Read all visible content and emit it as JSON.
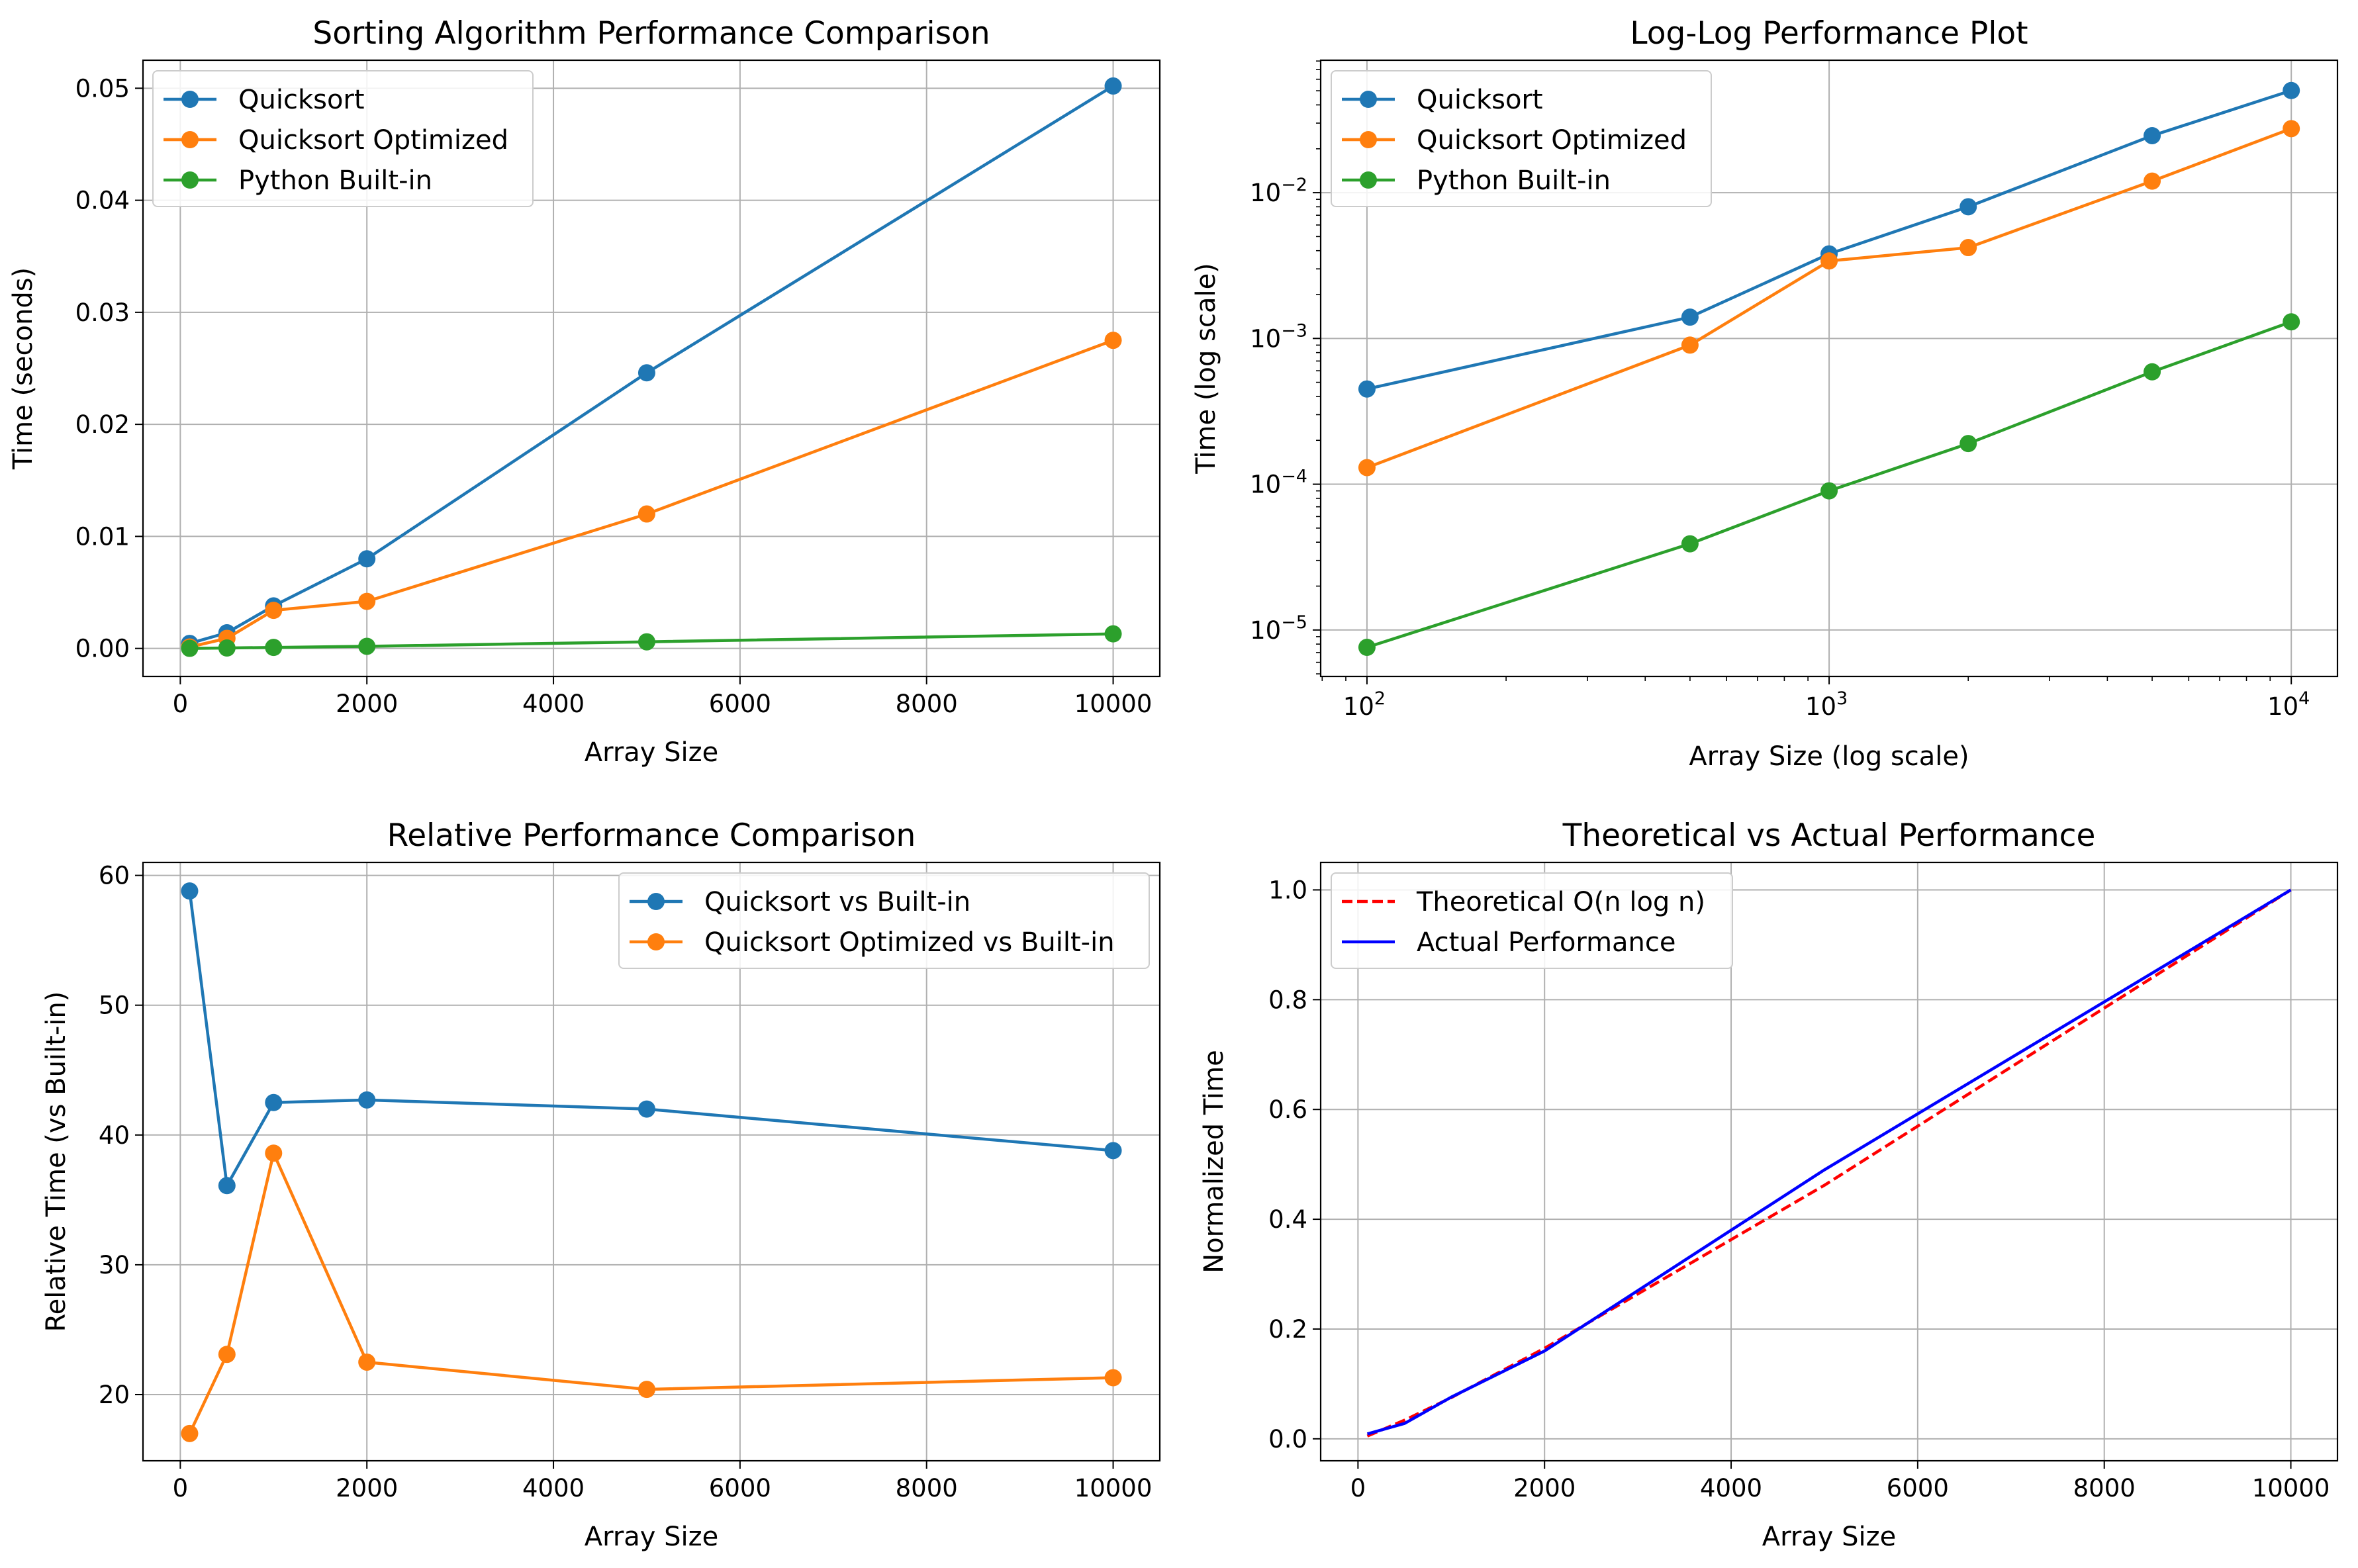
{
  "chart_data": [
    {
      "type": "line",
      "title": "Sorting Algorithm Performance Comparison",
      "xlabel": "Array Size",
      "ylabel": "Time (seconds)",
      "x": [
        100,
        500,
        1000,
        2000,
        5000,
        10000
      ],
      "xlim": [
        -400,
        10500
      ],
      "ylim": [
        -0.0025,
        0.0525
      ],
      "xticks": [
        0,
        2000,
        4000,
        6000,
        8000,
        10000
      ],
      "xtick_labels": [
        "0",
        "2000",
        "4000",
        "6000",
        "8000",
        "10000"
      ],
      "yticks": [
        0,
        0.01,
        0.02,
        0.03,
        0.04,
        0.05
      ],
      "ytick_labels": [
        "0.00",
        "0.01",
        "0.02",
        "0.03",
        "0.04",
        "0.05"
      ],
      "grid": true,
      "legend": "upper-left",
      "series": [
        {
          "name": "Quicksort",
          "color": "#1f77b4",
          "style": "solid",
          "marker": "circle",
          "values": [
            0.00045,
            0.0014,
            0.0038,
            0.008,
            0.0246,
            0.0502
          ]
        },
        {
          "name": "Quicksort Optimized",
          "color": "#ff7f0e",
          "style": "solid",
          "marker": "circle",
          "values": [
            0.00013,
            0.0009,
            0.0034,
            0.0042,
            0.012,
            0.0275
          ]
        },
        {
          "name": "Python Built-in",
          "color": "#2ca02c",
          "style": "solid",
          "marker": "circle",
          "values": [
            7.6e-06,
            3.9e-05,
            9e-05,
            0.00019,
            0.00059,
            0.0013
          ]
        }
      ]
    },
    {
      "type": "line",
      "title": "Log-Log Performance Plot",
      "xlabel": "Array Size (log scale)",
      "ylabel": "Time (log scale)",
      "xscale": "log",
      "yscale": "log",
      "x": [
        100,
        500,
        1000,
        2000,
        5000,
        10000
      ],
      "xlim": [
        79.4,
        12589
      ],
      "ylim": [
        4.8e-06,
        0.081
      ],
      "xticks": [
        {
          "base": "10",
          "exp": "2",
          "value": 100
        },
        {
          "base": "10",
          "exp": "3",
          "value": 1000
        },
        {
          "base": "10",
          "exp": "4",
          "value": 10000
        }
      ],
      "yticks": [
        {
          "base": "10",
          "exp": "−5",
          "value": 1e-05
        },
        {
          "base": "10",
          "exp": "−4",
          "value": 0.0001
        },
        {
          "base": "10",
          "exp": "−3",
          "value": 0.001
        },
        {
          "base": "10",
          "exp": "−2",
          "value": 0.01
        }
      ],
      "grid": true,
      "legend": "upper-left",
      "series": [
        {
          "name": "Quicksort",
          "color": "#1f77b4",
          "style": "solid",
          "marker": "circle",
          "values": [
            0.00045,
            0.0014,
            0.0038,
            0.008,
            0.0246,
            0.0502
          ]
        },
        {
          "name": "Quicksort Optimized",
          "color": "#ff7f0e",
          "style": "solid",
          "marker": "circle",
          "values": [
            0.00013,
            0.0009,
            0.0034,
            0.0042,
            0.012,
            0.0275
          ]
        },
        {
          "name": "Python Built-in",
          "color": "#2ca02c",
          "style": "solid",
          "marker": "circle",
          "values": [
            7.6e-06,
            3.9e-05,
            9e-05,
            0.00019,
            0.00059,
            0.0013
          ]
        }
      ]
    },
    {
      "type": "line",
      "title": "Relative Performance Comparison",
      "xlabel": "Array Size",
      "ylabel": "Relative Time (vs Built-in)",
      "x": [
        100,
        500,
        1000,
        2000,
        5000,
        10000
      ],
      "xlim": [
        -400,
        10500
      ],
      "ylim": [
        14.9,
        61.0
      ],
      "xticks": [
        0,
        2000,
        4000,
        6000,
        8000,
        10000
      ],
      "xtick_labels": [
        "0",
        "2000",
        "4000",
        "6000",
        "8000",
        "10000"
      ],
      "yticks": [
        20,
        30,
        40,
        50,
        60
      ],
      "ytick_labels": [
        "20",
        "30",
        "40",
        "50",
        "60"
      ],
      "grid": true,
      "legend": "upper-right",
      "series": [
        {
          "name": "Quicksort vs Built-in",
          "color": "#1f77b4",
          "style": "solid",
          "marker": "circle",
          "values": [
            58.8,
            36.1,
            42.5,
            42.7,
            42.0,
            38.8
          ]
        },
        {
          "name": "Quicksort Optimized vs Built-in",
          "color": "#ff7f0e",
          "style": "solid",
          "marker": "circle",
          "values": [
            17.0,
            23.1,
            38.6,
            22.5,
            20.4,
            21.3
          ]
        }
      ]
    },
    {
      "type": "line",
      "title": "Theoretical vs Actual Performance",
      "xlabel": "Array Size",
      "ylabel": "Normalized Time",
      "x": [
        100,
        500,
        1000,
        2000,
        5000,
        10000
      ],
      "xlim": [
        -400,
        10500
      ],
      "ylim": [
        -0.04,
        1.05
      ],
      "xticks": [
        0,
        2000,
        4000,
        6000,
        8000,
        10000
      ],
      "xtick_labels": [
        "0",
        "2000",
        "4000",
        "6000",
        "8000",
        "10000"
      ],
      "yticks": [
        0,
        0.2,
        0.4,
        0.6,
        0.8,
        1.0
      ],
      "ytick_labels": [
        "0.0",
        "0.2",
        "0.4",
        "0.6",
        "0.8",
        "1.0"
      ],
      "grid": true,
      "legend": "upper-left",
      "series": [
        {
          "name": "Theoretical O(n log n)",
          "color": "#ff0000",
          "style": "dashed",
          "marker": "none",
          "values": [
            0.005,
            0.034,
            0.075,
            0.165,
            0.462,
            1.0
          ]
        },
        {
          "name": "Actual Performance",
          "color": "#0000ff",
          "style": "solid",
          "marker": "none",
          "values": [
            0.009,
            0.028,
            0.076,
            0.16,
            0.49,
            1.0
          ]
        }
      ]
    }
  ]
}
